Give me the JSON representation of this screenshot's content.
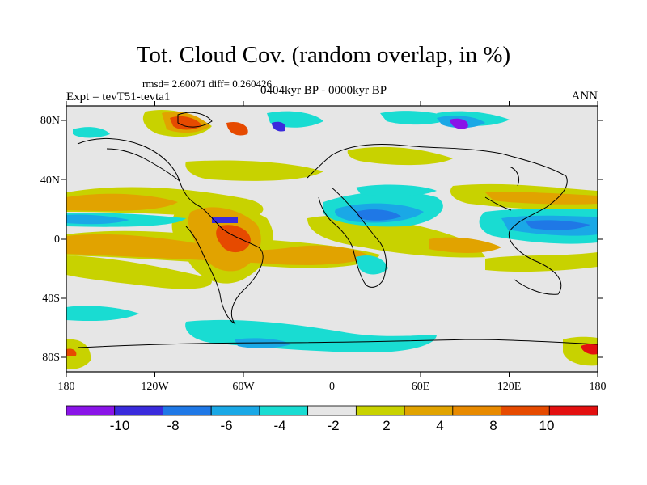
{
  "title": "Tot. Cloud Cov. (random overlap, in %)",
  "stats": "rmsd= 2.60071 diff= 0.260426",
  "experiment": "Expt = tevT51-tevta1",
  "period": "0404kyr BP - 0000kyr BP",
  "season": "ANN",
  "map": {
    "lon_labels": [
      "180",
      "120W",
      "60W",
      "0",
      "60E",
      "120E",
      "180"
    ],
    "lat_labels": [
      "80N",
      "40N",
      "0",
      "40S",
      "80S"
    ],
    "background_color": "#e6e6e6",
    "coastline_color": "#000000"
  },
  "colorbar": {
    "labels": [
      "-10",
      "-8",
      "-6",
      "-4",
      "-2",
      "2",
      "4",
      "8",
      "10"
    ],
    "colors": [
      "#8a14e8",
      "#3a2bdc",
      "#1f78e6",
      "#1aa8e6",
      "#19dcd2",
      "#e6e6e6",
      "#c8d200",
      "#e1a300",
      "#e88a00",
      "#e64a00",
      "#e31010"
    ]
  }
}
